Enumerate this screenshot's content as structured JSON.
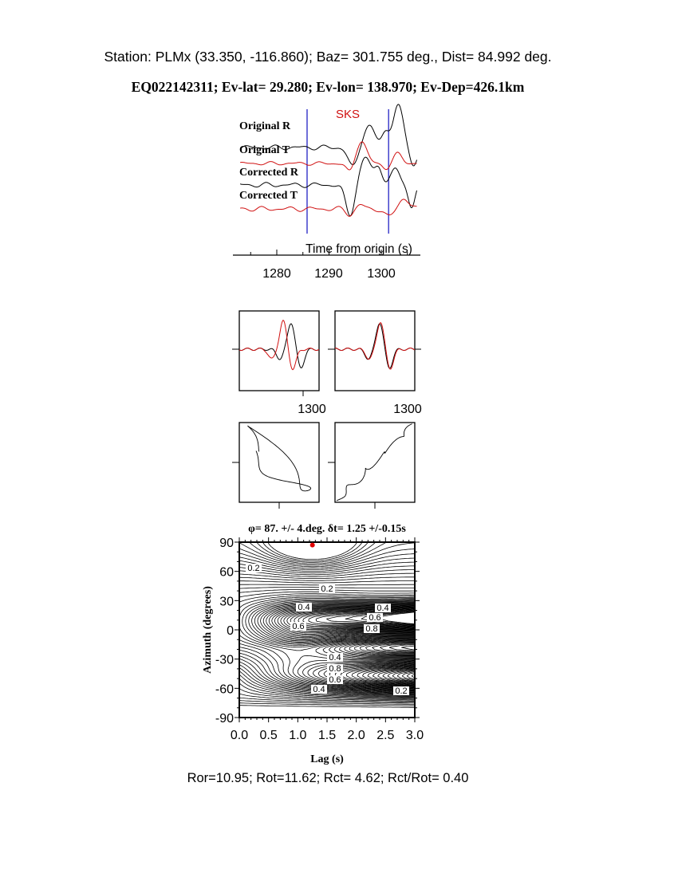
{
  "header": {
    "station_line": "Station: PLMx (33.350, -116.860); Baz=  301.755 deg., Dist=   84.992 deg.",
    "event_line": "EQ022142311; Ev-lat=  29.280; Ev-lon= 138.970; Ev-Dep=426.1km"
  },
  "colors": {
    "radial": "#000000",
    "transverse": "#d01010",
    "window_marker": "#1010c0",
    "best_fit_point": "#e00000"
  },
  "chart_data": [
    {
      "type": "line",
      "phase_label": "SKS",
      "trace_labels": [
        "Original R",
        "Original T",
        "Corrected R",
        "Corrected T"
      ],
      "xlabel": "Time from origin (s)",
      "xticks": [
        "1280",
        "1290",
        "1300"
      ],
      "xlim": [
        1273,
        1307
      ],
      "window_markers_s": [
        1285.8,
        1301.4
      ]
    },
    {
      "type": "line",
      "panels": [
        "before correction",
        "after correction"
      ],
      "xtick_labels": [
        "1300",
        "1300"
      ]
    },
    {
      "type": "scatter",
      "panels": [
        "particle motion before",
        "particle motion after"
      ]
    },
    {
      "type": "heatmap",
      "title": "φ= 87. +/- 4.deg. δt= 1.25 +/-0.15s",
      "xlabel": "Lag (s)",
      "ylabel": "Azimuth (degrees)",
      "xlim": [
        0,
        3
      ],
      "ylim": [
        -90,
        90
      ],
      "xticks": [
        "0.0",
        "0.5",
        "1.0",
        "1.5",
        "2.0",
        "2.5",
        "3.0"
      ],
      "yticks": [
        "90",
        "60",
        "30",
        "0",
        "-30",
        "-60",
        "-90"
      ],
      "best_fit": {
        "lag": 1.25,
        "azimuth": 87
      },
      "contour_labels": [
        "0.2",
        "0.2",
        "0.4",
        "0.6",
        "0.4",
        "0.6",
        "0.8",
        "0.4",
        "0.8",
        "0.6",
        "0.4",
        "0.2",
        "0.2"
      ]
    }
  ],
  "footer": {
    "ratios": "Ror=10.95; Rot=11.62; Rct= 4.62; Rct/Rot= 0.40"
  }
}
